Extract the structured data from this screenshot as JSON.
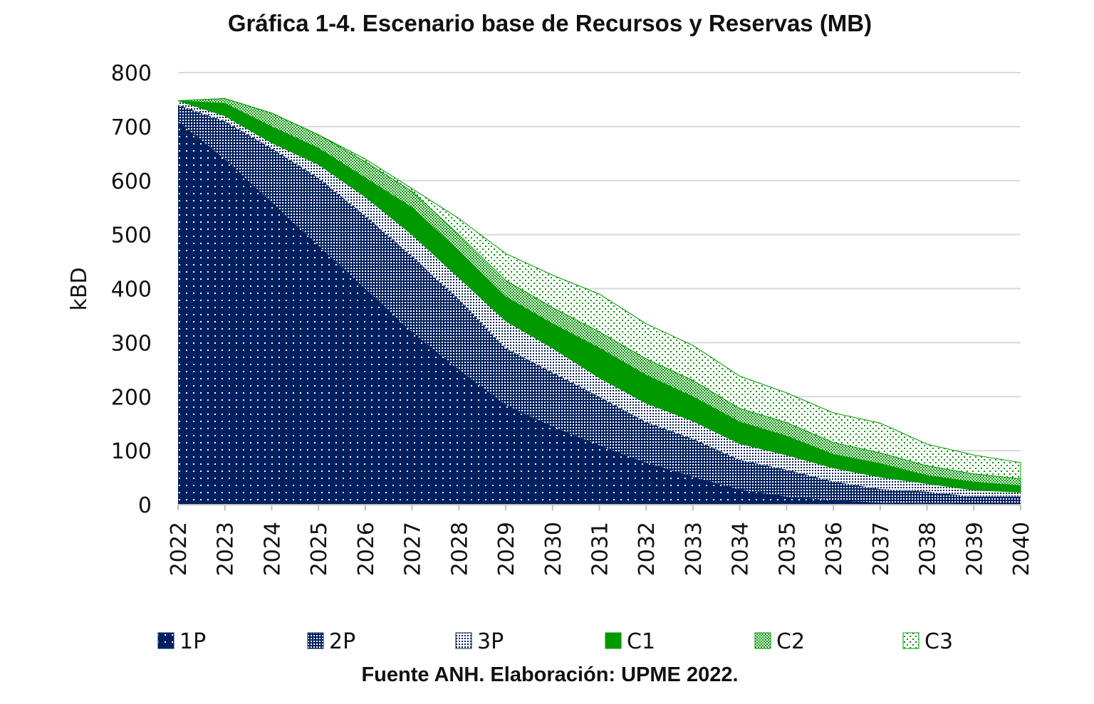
{
  "chart_data": {
    "type": "area",
    "stacked": true,
    "title": "Gráfica 1-4. Escenario base de Recursos y Reservas (MB)",
    "caption": "Fuente ANH. Elaboración: UPME 2022.",
    "xlabel": "",
    "ylabel": "kBD",
    "ylim": [
      0,
      800
    ],
    "yticks": [
      0,
      100,
      200,
      300,
      400,
      500,
      600,
      700,
      800
    ],
    "grid": true,
    "legend_position": "bottom",
    "categories": [
      "2022",
      "2023",
      "2024",
      "2025",
      "2026",
      "2027",
      "2028",
      "2029",
      "2030",
      "2031",
      "2032",
      "2033",
      "2034",
      "2035",
      "2036",
      "2037",
      "2038",
      "2039",
      "2040"
    ],
    "series": [
      {
        "name": "1P",
        "color": "#002060",
        "pattern": "dots-dark",
        "values": [
          710,
          640,
          560,
          480,
          400,
          320,
          250,
          185,
          145,
          110,
          78,
          52,
          28,
          15,
          8,
          4,
          2,
          1,
          1
        ]
      },
      {
        "name": "2P",
        "color": "#002060",
        "pattern": "dense-dots",
        "values": [
          30,
          70,
          100,
          125,
          135,
          140,
          130,
          105,
          100,
          90,
          75,
          70,
          55,
          50,
          35,
          25,
          22,
          14,
          14
        ]
      },
      {
        "name": "3P",
        "color": "#002060",
        "pattern": "light-dots",
        "values": [
          8,
          10,
          10,
          25,
          35,
          40,
          40,
          50,
          45,
          35,
          35,
          33,
          30,
          27,
          25,
          22,
          15,
          12,
          8
        ]
      },
      {
        "name": "C1",
        "color": "#009900",
        "pattern": "solid",
        "values": [
          0,
          23,
          30,
          30,
          35,
          50,
          50,
          45,
          45,
          55,
          52,
          45,
          40,
          35,
          25,
          25,
          15,
          15,
          12
        ]
      },
      {
        "name": "C2",
        "color": "#009900",
        "pattern": "checker",
        "values": [
          0,
          9,
          25,
          25,
          30,
          30,
          30,
          30,
          30,
          30,
          30,
          30,
          25,
          25,
          22,
          20,
          18,
          15,
          13
        ]
      },
      {
        "name": "C3",
        "color": "#009900",
        "pattern": "sparse-dots",
        "values": [
          0,
          0,
          0,
          0,
          5,
          5,
          30,
          50,
          60,
          70,
          65,
          65,
          60,
          55,
          55,
          55,
          40,
          35,
          30
        ]
      }
    ]
  }
}
